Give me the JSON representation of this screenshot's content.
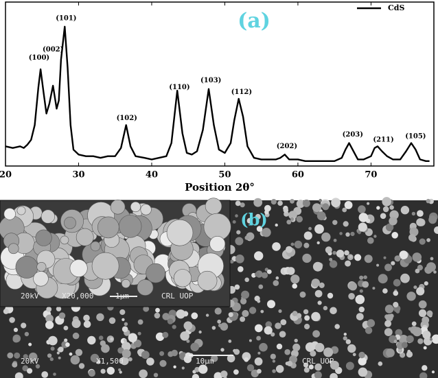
{
  "chart_data": {
    "type": "line",
    "title": "(a)",
    "xlabel": "Position 2θ°",
    "xlim": [
      20,
      78.6
    ],
    "ylim": [
      0,
      100
    ],
    "xticks": [
      20,
      30,
      40,
      50,
      60,
      70
    ],
    "grid": false,
    "legend": "upper right",
    "series": [
      {
        "name": "CdS",
        "color": "#000000",
        "x": [
          20,
          21,
          22,
          22.5,
          23,
          23.5,
          24,
          24.5,
          24.8,
          25.2,
          25.6,
          26,
          26.5,
          27,
          27.3,
          27.6,
          28.1,
          28.5,
          28.9,
          29.3,
          30,
          31,
          32,
          33,
          34,
          35,
          35.8,
          36.5,
          37.1,
          37.8,
          39,
          40,
          41,
          42,
          42.7,
          43.5,
          44.2,
          44.8,
          45.5,
          46.2,
          47,
          47.8,
          48.5,
          49.2,
          50,
          50.8,
          51.3,
          51.9,
          52.5,
          53.1,
          54,
          55,
          56,
          57,
          57.6,
          58.2,
          58.8,
          60,
          61,
          62,
          63,
          64,
          65,
          66,
          66.5,
          67,
          67.6,
          68.2,
          69,
          70,
          70.5,
          70.9,
          71.5,
          72.2,
          73,
          74,
          74.8,
          75.5,
          76.1,
          76.7,
          77.5,
          78
        ],
        "values": [
          12,
          11,
          12,
          11,
          13,
          16,
          25,
          48,
          59,
          45,
          32,
          38,
          49,
          35,
          40,
          65,
          85,
          60,
          25,
          10,
          7,
          6,
          6,
          5,
          6,
          6,
          11,
          25,
          12,
          6,
          5,
          4,
          5,
          6,
          14,
          46,
          20,
          8,
          7,
          9,
          22,
          47,
          25,
          10,
          8,
          14,
          28,
          41,
          30,
          12,
          5,
          4,
          4,
          4,
          5,
          7,
          4,
          4,
          3,
          3,
          3,
          3,
          3,
          5,
          10,
          14,
          9,
          4,
          4,
          6,
          11,
          12,
          9,
          6,
          4,
          4,
          9,
          14,
          10,
          4,
          3,
          3
        ]
      }
    ],
    "annotations": [
      {
        "text": "(100)",
        "x": 24.6,
        "y": 66
      },
      {
        "text": "(002)",
        "x": 26.5,
        "y": 71
      },
      {
        "text": "(101)",
        "x": 28.3,
        "y": 90
      },
      {
        "text": "(102)",
        "x": 36.6,
        "y": 29
      },
      {
        "text": "(110)",
        "x": 43.8,
        "y": 48
      },
      {
        "text": "(103)",
        "x": 48.1,
        "y": 52
      },
      {
        "text": "(112)",
        "x": 52.3,
        "y": 45
      },
      {
        "text": "(202)",
        "x": 58.5,
        "y": 12
      },
      {
        "text": "(203)",
        "x": 67.5,
        "y": 19
      },
      {
        "text": "(211)",
        "x": 71.7,
        "y": 16
      },
      {
        "text": "(105)",
        "x": 76.1,
        "y": 18
      }
    ]
  },
  "image": {
    "label": "(b)",
    "inset_caption": [
      "20kV",
      "X20,000",
      "1µm",
      "CRL UOP"
    ],
    "caption": [
      "20kV",
      "X1,500",
      "10µm",
      "CRL UOP"
    ]
  }
}
